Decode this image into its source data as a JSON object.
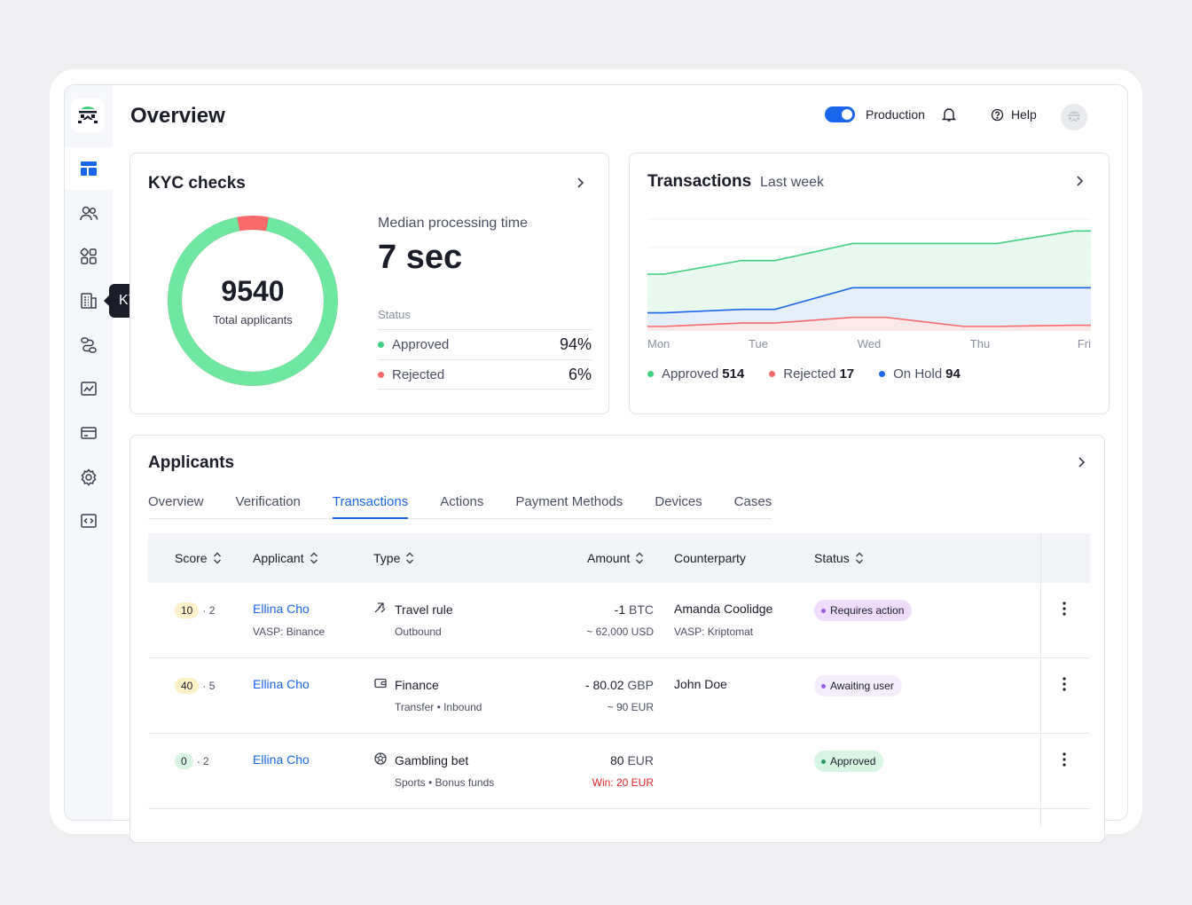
{
  "page": {
    "title": "Overview"
  },
  "top": {
    "env_label": "Production",
    "help_label": "Help"
  },
  "sidebar": {
    "items": [
      {
        "icon": "dashboard-icon",
        "active": true
      },
      {
        "icon": "users-icon"
      },
      {
        "icon": "apps-icon"
      },
      {
        "icon": "building-icon"
      },
      {
        "icon": "flow-icon"
      },
      {
        "icon": "chart-icon"
      },
      {
        "icon": "card-icon"
      },
      {
        "icon": "gear-icon"
      },
      {
        "icon": "code-icon"
      }
    ],
    "tooltip": "KYB"
  },
  "kyc": {
    "title": "KYC checks",
    "total": "9540",
    "total_label": "Total applicants",
    "median_label": "Median processing time",
    "median_value": "7 sec",
    "status_label": "Status",
    "approved_label": "Approved",
    "approved_pct": "94%",
    "rejected_label": "Rejected",
    "rejected_pct": "6%",
    "approved_fraction": 0.94,
    "colors": {
      "approved": "#6ee7a0",
      "rejected": "#f86a6a"
    }
  },
  "transactions": {
    "title": "Transactions",
    "subtitle": "Last week",
    "chart_data": {
      "type": "area",
      "categories": [
        "Mon",
        "Tue",
        "Wed",
        "Thu",
        "Fri"
      ],
      "series": [
        {
          "name": "Approved",
          "color": "#3ecf7f",
          "values": [
            0.5,
            0.62,
            0.77,
            0.77,
            0.88
          ]
        },
        {
          "name": "On Hold",
          "color": "#1a66ea",
          "values": [
            0.16,
            0.19,
            0.38,
            0.38,
            0.38
          ]
        },
        {
          "name": "Rejected",
          "color": "#f86a6a",
          "values": [
            0.04,
            0.07,
            0.12,
            0.04,
            0.05
          ]
        }
      ]
    },
    "legend": [
      {
        "label": "Approved",
        "value": "514",
        "color": "#3ecf7f"
      },
      {
        "label": "Rejected",
        "value": "17",
        "color": "#f86a6a"
      },
      {
        "label": "On Hold",
        "value": "94",
        "color": "#1a66ea"
      }
    ]
  },
  "applicants": {
    "title": "Applicants",
    "tabs": [
      "Overview",
      "Verification",
      "Transactions",
      "Actions",
      "Payment Methods",
      "Devices",
      "Cases"
    ],
    "active_tab": 2,
    "columns": [
      "Score",
      "Applicant",
      "Type",
      "Amount",
      "Counterparty",
      "Status"
    ],
    "rows": [
      {
        "score": "10",
        "score_sub": "· 2",
        "score_bg": "#fdf1c7",
        "name": "Ellina Cho",
        "name_sub": "VASP: Binance",
        "type_icon": "travel-rule-icon",
        "type": "Travel rule",
        "type_sub": "Outbound",
        "amount_num": "-1",
        "amount_unit": "BTC",
        "amount_sub": "~ 62,000 USD",
        "amount_sub_color": "#4b4f60",
        "counterparty": "Amanda Coolidge",
        "counterparty_sub": "VASP: Kriptomat",
        "status": "Requires action",
        "status_bg": "#efdcfb",
        "status_dot": "#9b5de5"
      },
      {
        "score": "40",
        "score_sub": "· 5",
        "score_bg": "#fdf1c7",
        "name": "Ellina Cho",
        "name_sub": "",
        "type_icon": "wallet-icon",
        "type": "Finance",
        "type_sub": "Transfer • Inbound",
        "amount_num": "- 80.02",
        "amount_unit": "GBP",
        "amount_sub": "~ 90 EUR",
        "amount_sub_color": "#4b4f60",
        "counterparty": "John Doe",
        "counterparty_sub": "",
        "status": "Awaiting user",
        "status_bg": "#f4edfb",
        "status_dot": "#9b5de5"
      },
      {
        "score": "0",
        "score_sub": "· 2",
        "score_bg": "#d8f5e4",
        "name": "Ellina Cho",
        "name_sub": "",
        "type_icon": "ball-icon",
        "type": "Gambling bet",
        "type_sub": "Sports • Bonus funds",
        "amount_num": "80",
        "amount_unit": "EUR",
        "amount_sub": "Win: 20 EUR",
        "amount_sub_color": "#e02424",
        "counterparty": "",
        "counterparty_sub": "",
        "status": "Approved",
        "status_bg": "#d8f5e4",
        "status_dot": "#2b9a5e"
      }
    ]
  }
}
